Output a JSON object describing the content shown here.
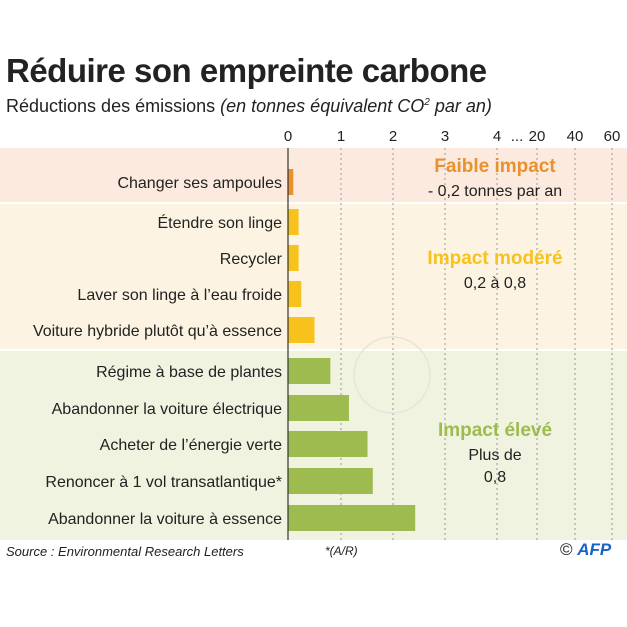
{
  "title": "Réduire son empreinte carbone",
  "subtitle_main": "Réductions des émissions",
  "subtitle_unit": "(en tonnes équivalent CO",
  "subtitle_sup": "2",
  "subtitle_end": " par an)",
  "footer": {
    "source": "Source : Environmental Research Letters",
    "note": "*(A/R)",
    "copyright": "©",
    "logo": "AFP"
  },
  "colors": {
    "faible": "#e8912e",
    "modere": "#f6c21b",
    "eleve": "#9dbb4e",
    "band_faible": "#fbeadd",
    "band_modere": "#fdf3e2",
    "band_eleve": "#eff3e0"
  },
  "chart_data": {
    "type": "bar",
    "orientation": "horizontal",
    "title": "Réduire son empreinte carbone",
    "xlabel": "tonnes équivalent CO2 par an",
    "ticks": [
      "0",
      "1",
      "2",
      "3",
      "4",
      "20",
      "40",
      "60"
    ],
    "tick_values": [
      0,
      1,
      2,
      3,
      4,
      20,
      40,
      60
    ],
    "axis_break_label": "...",
    "categories": [
      "Changer ses ampoules",
      "Étendre son linge",
      "Recycler",
      "Laver son linge à l’eau froide",
      "Voiture hybride plutôt qu’à essence",
      "Régime à base de plantes",
      "Abandonner la voiture électrique",
      "Acheter de l’énergie verte",
      "Renoncer à 1 vol transatlantique*",
      "Abandonner la voiture à essence"
    ],
    "values": [
      0.1,
      0.2,
      0.2,
      0.25,
      0.5,
      0.8,
      1.15,
      1.5,
      1.6,
      2.4
    ],
    "groups": [
      {
        "name": "Faible impact",
        "desc": [
          "- 0,2 tonnes par an"
        ],
        "start": 0,
        "end": 0,
        "color_key": "faible"
      },
      {
        "name": "Impact modéré",
        "desc": [
          "0,2 à 0,8"
        ],
        "start": 1,
        "end": 4,
        "color_key": "modere"
      },
      {
        "name": "Impact élevé",
        "desc": [
          "Plus de",
          "0,8"
        ],
        "start": 5,
        "end": 9,
        "color_key": "eleve"
      }
    ]
  }
}
